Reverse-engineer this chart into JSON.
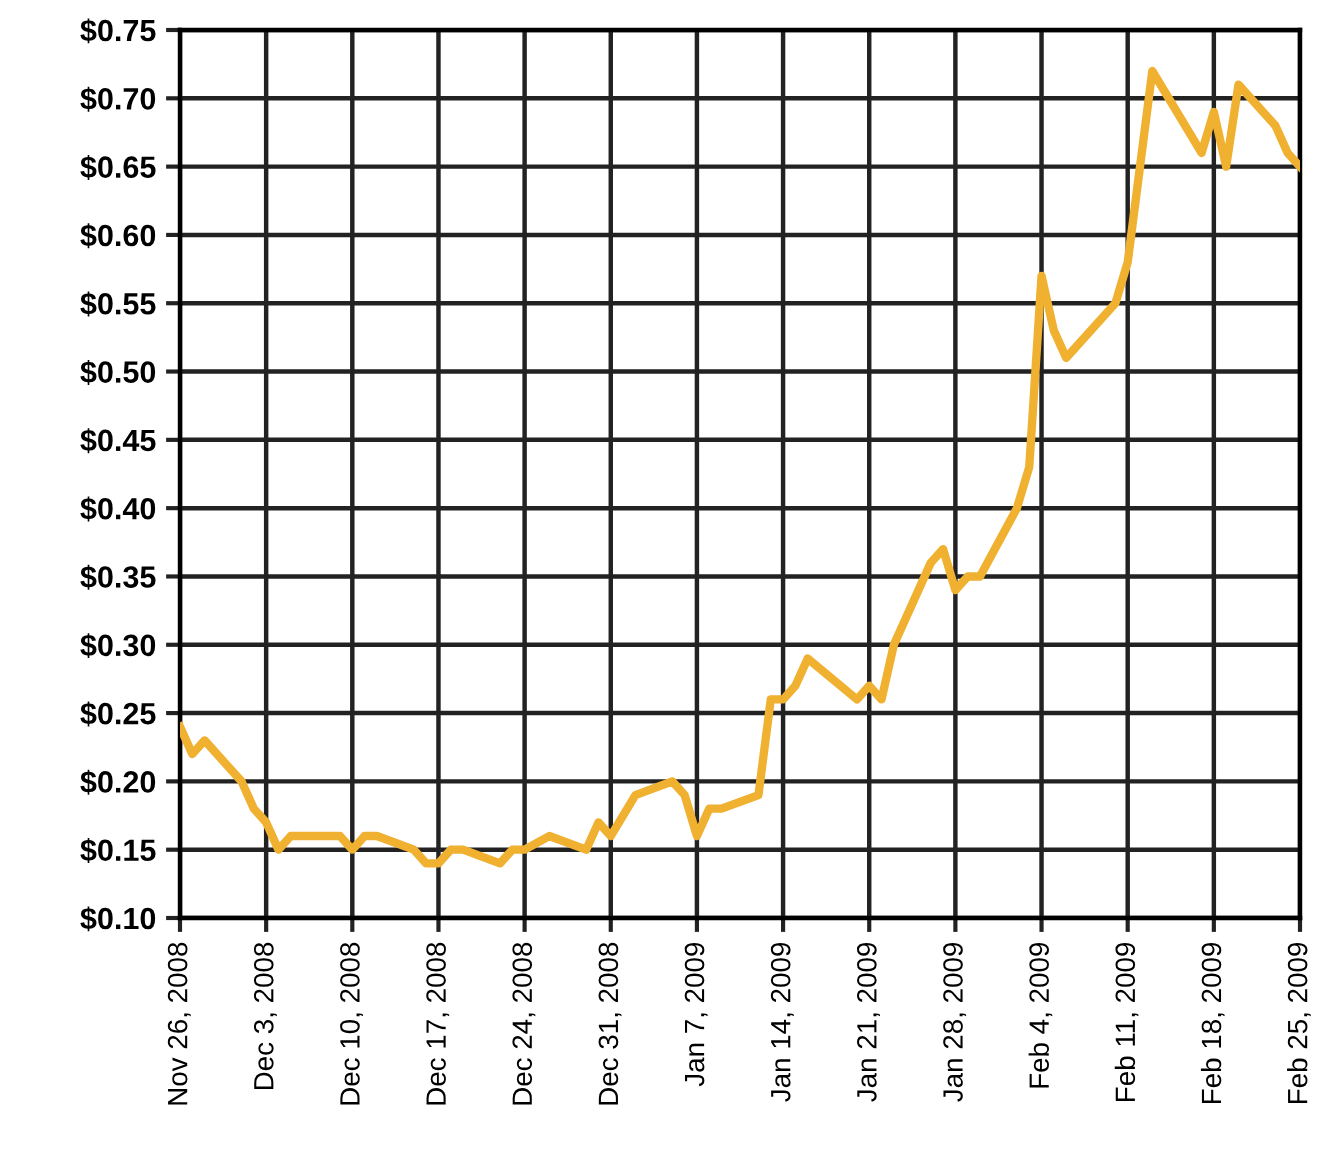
{
  "chart_data": {
    "type": "line",
    "x": [
      "2008-11-26",
      "2008-11-27",
      "2008-11-28",
      "2008-12-01",
      "2008-12-02",
      "2008-12-03",
      "2008-12-04",
      "2008-12-05",
      "2008-12-09",
      "2008-12-10",
      "2008-12-11",
      "2008-12-12",
      "2008-12-15",
      "2008-12-16",
      "2008-12-17",
      "2008-12-18",
      "2008-12-19",
      "2008-12-22",
      "2008-12-23",
      "2008-12-24",
      "2008-12-26",
      "2008-12-29",
      "2008-12-30",
      "2008-12-31",
      "2009-01-02",
      "2009-01-05",
      "2009-01-06",
      "2009-01-07",
      "2009-01-08",
      "2009-01-09",
      "2009-01-12",
      "2009-01-13",
      "2009-01-14",
      "2009-01-15",
      "2009-01-16",
      "2009-01-20",
      "2009-01-21",
      "2009-01-22",
      "2009-01-23",
      "2009-01-26",
      "2009-01-27",
      "2009-01-28",
      "2009-01-29",
      "2009-01-30",
      "2009-02-02",
      "2009-02-03",
      "2009-02-04",
      "2009-02-05",
      "2009-02-06",
      "2009-02-10",
      "2009-02-11",
      "2009-02-12",
      "2009-02-13",
      "2009-02-17",
      "2009-02-18",
      "2009-02-19",
      "2009-02-20",
      "2009-02-23",
      "2009-02-24",
      "2009-02-25"
    ],
    "series": [
      {
        "color": "#f0b030",
        "values": [
          0.24,
          0.22,
          0.23,
          0.2,
          0.18,
          0.17,
          0.15,
          0.16,
          0.16,
          0.15,
          0.16,
          0.16,
          0.15,
          0.14,
          0.14,
          0.15,
          0.15,
          0.14,
          0.15,
          0.15,
          0.16,
          0.15,
          0.17,
          0.16,
          0.19,
          0.2,
          0.19,
          0.16,
          0.18,
          0.18,
          0.19,
          0.26,
          0.26,
          0.27,
          0.29,
          0.26,
          0.27,
          0.26,
          0.3,
          0.36,
          0.37,
          0.34,
          0.35,
          0.35,
          0.4,
          0.43,
          0.57,
          0.53,
          0.51,
          0.55,
          0.58,
          0.65,
          0.72,
          0.66,
          0.69,
          0.65,
          0.71,
          0.68,
          0.66,
          0.65
        ]
      }
    ],
    "xlim": [
      "2008-11-26",
      "2009-02-25"
    ],
    "xticks": [
      {
        "value": "2008-11-26",
        "label": "Nov 26, 2008"
      },
      {
        "value": "2008-12-03",
        "label": "Dec 3, 2008"
      },
      {
        "value": "2008-12-10",
        "label": "Dec 10, 2008"
      },
      {
        "value": "2008-12-17",
        "label": "Dec 17, 2008"
      },
      {
        "value": "2008-12-24",
        "label": "Dec 24, 2008"
      },
      {
        "value": "2008-12-31",
        "label": "Dec 31, 2008"
      },
      {
        "value": "2009-01-07",
        "label": "Jan 7, 2009"
      },
      {
        "value": "2009-01-14",
        "label": "Jan 14, 2009"
      },
      {
        "value": "2009-01-21",
        "label": "Jan 21, 2009"
      },
      {
        "value": "2009-01-28",
        "label": "Jan 28, 2009"
      },
      {
        "value": "2009-02-04",
        "label": "Feb 4, 2009"
      },
      {
        "value": "2009-02-11",
        "label": "Feb 11, 2009"
      },
      {
        "value": "2009-02-18",
        "label": "Feb 18, 2009"
      },
      {
        "value": "2009-02-25",
        "label": "Feb 25, 2009"
      }
    ],
    "ylim": [
      0.1,
      0.75
    ],
    "yticks": [
      {
        "value": 0.1,
        "label": "$0.10"
      },
      {
        "value": 0.15,
        "label": "$0.15"
      },
      {
        "value": 0.2,
        "label": "$0.20"
      },
      {
        "value": 0.25,
        "label": "$0.25"
      },
      {
        "value": 0.3,
        "label": "$0.30"
      },
      {
        "value": 0.35,
        "label": "$0.35"
      },
      {
        "value": 0.4,
        "label": "$0.40"
      },
      {
        "value": 0.45,
        "label": "$0.45"
      },
      {
        "value": 0.5,
        "label": "$0.50"
      },
      {
        "value": 0.55,
        "label": "$0.55"
      },
      {
        "value": 0.6,
        "label": "$0.60"
      },
      {
        "value": 0.65,
        "label": "$0.65"
      },
      {
        "value": 0.7,
        "label": "$0.70"
      },
      {
        "value": 0.75,
        "label": "$0.75"
      }
    ],
    "grid": true,
    "line_style": "solid",
    "marker": "none"
  }
}
